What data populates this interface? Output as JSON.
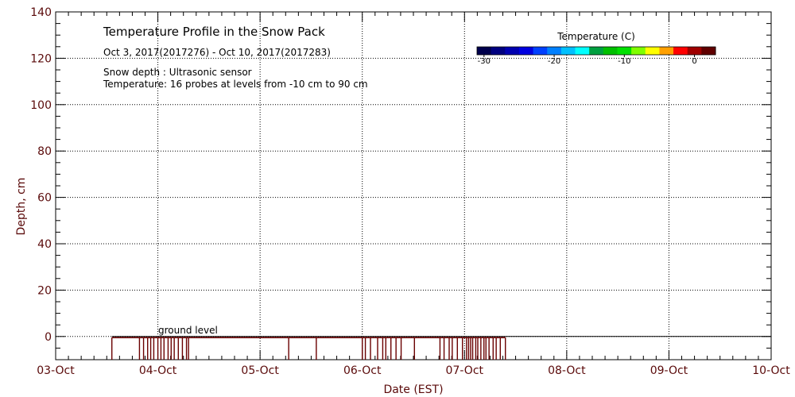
{
  "chart_data": {
    "type": "line",
    "title": "Temperature Profile in the Snow Pack",
    "subtitle": "Oct  3, 2017(2017276) - Oct 10, 2017(2017283)",
    "notes": [
      "Snow depth : Ultrasonic sensor",
      "Temperature: 16 probes at levels from -10 cm to 90 cm"
    ],
    "xlabel": "Date (EST)",
    "ylabel": "Depth, cm",
    "x_tick_labels": [
      "03-Oct",
      "04-Oct",
      "05-Oct",
      "06-Oct",
      "07-Oct",
      "08-Oct",
      "09-Oct",
      "10-Oct"
    ],
    "xlim": [
      0,
      7
    ],
    "ylim": [
      -10,
      140
    ],
    "y_ticks": [
      0,
      20,
      40,
      60,
      80,
      100,
      120,
      140
    ],
    "grid": true,
    "annotation": "ground level",
    "ground_level": {
      "x_start": 0.55,
      "x_end": 7,
      "y": 0
    },
    "snow_depth": {
      "name": "Snow depth",
      "baseline": -0.5,
      "spike_to": -10,
      "color": "#6a0000",
      "x_range": [
        0.55,
        4.4
      ],
      "spikes_x": [
        0.55,
        0.82,
        0.86,
        0.9,
        0.93,
        0.96,
        1.0,
        1.03,
        1.06,
        1.1,
        1.13,
        1.16,
        1.2,
        1.24,
        1.28,
        1.3,
        2.28,
        2.55,
        3.0,
        3.03,
        3.08,
        3.15,
        3.2,
        3.23,
        3.28,
        3.33,
        3.38,
        3.51,
        3.76,
        3.8,
        3.85,
        3.88,
        3.93,
        3.98,
        4.02,
        4.04,
        4.06,
        4.08,
        4.11,
        4.13,
        4.16,
        4.19,
        4.21,
        4.24,
        4.28,
        4.31,
        4.35,
        4.4
      ]
    },
    "colorbar": {
      "label": "Temperature (C)",
      "tick_labels": [
        "-30",
        "-20",
        "-10",
        "0"
      ],
      "min": -31,
      "max": 3,
      "colors": [
        "#00004c",
        "#000080",
        "#0000b0",
        "#0000e0",
        "#0040ff",
        "#0080ff",
        "#00c0ff",
        "#00ffff",
        "#00a040",
        "#00c000",
        "#00e000",
        "#80ff00",
        "#ffff00",
        "#ffa000",
        "#ff0000",
        "#a00000",
        "#600000"
      ]
    }
  }
}
